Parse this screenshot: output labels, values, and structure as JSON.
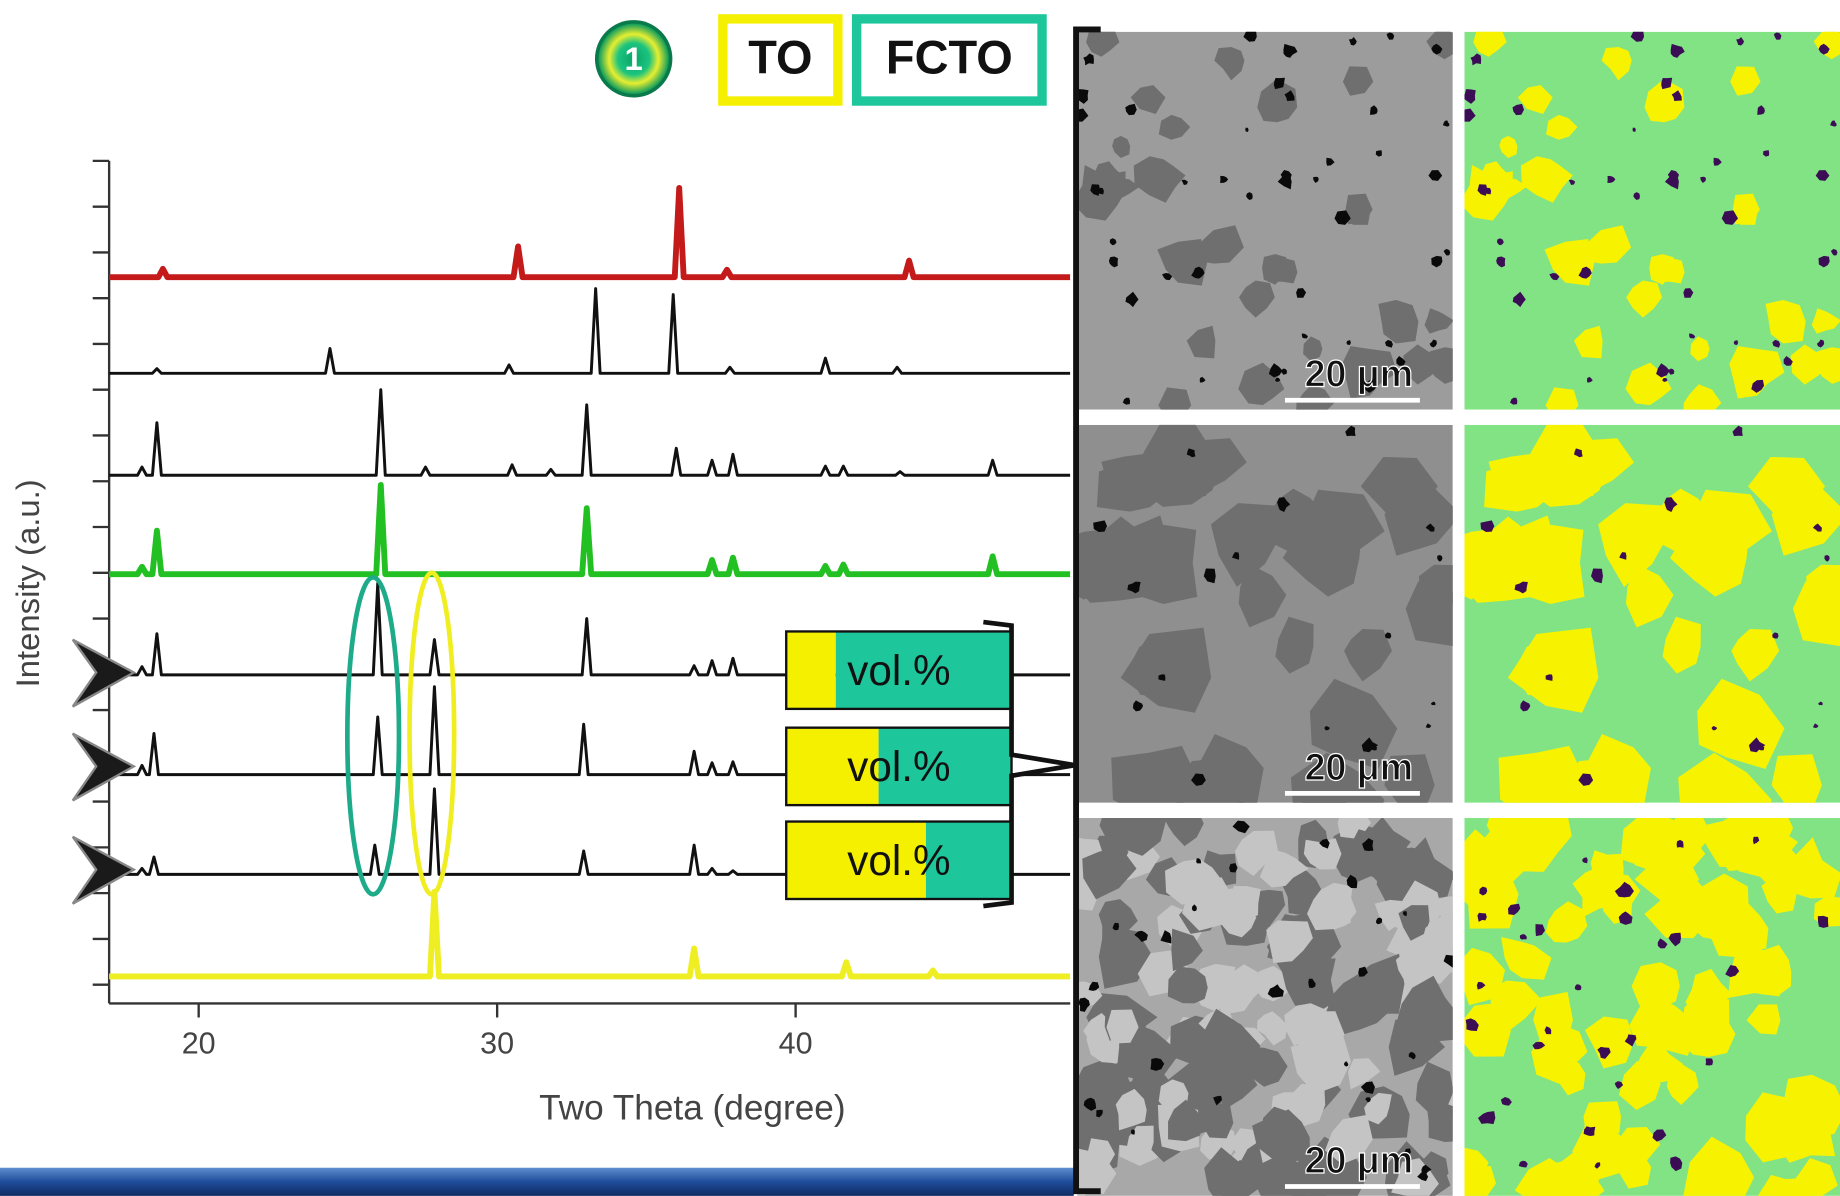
{
  "badge": "1",
  "legend": [
    {
      "label": "TO",
      "color": "#f5ef00"
    },
    {
      "label": "FCTO",
      "color": "#1dc79b"
    }
  ],
  "chart_data": {
    "type": "line",
    "x_label": "Two Theta (degree)",
    "y_label": "Intensity (a.u.)",
    "xlim": [
      17,
      49.2
    ],
    "xticks": [
      20,
      30,
      40
    ],
    "ylim": [
      -0.41,
      18
    ],
    "yticks": [
      0,
      1,
      2,
      3,
      4,
      5,
      6,
      7,
      8,
      9,
      10,
      11,
      12,
      13,
      14,
      15,
      16,
      17,
      18
    ],
    "series": [
      {
        "color": "#c41a1a",
        "line_width": 5,
        "x": [
          17,
          18.65,
          18.8,
          18.95,
          30.55,
          30.7,
          30.85,
          35.95,
          36.1,
          36.25,
          37.55,
          37.7,
          37.85,
          43.65,
          43.8,
          43.95,
          49.2
        ],
        "values": [
          15.46,
          15.46,
          15.64,
          15.46,
          15.46,
          16.13,
          15.46,
          15.46,
          17.41,
          15.46,
          15.46,
          15.62,
          15.46,
          15.46,
          15.82,
          15.46,
          15.46
        ]
      },
      {
        "color": "#111111",
        "line_width": 2.5,
        "x": [
          17,
          18.45,
          18.6,
          18.75,
          24.25,
          24.4,
          24.55,
          30.25,
          30.4,
          30.55,
          33.15,
          33.3,
          33.45,
          35.75,
          35.9,
          36.05,
          37.65,
          37.8,
          37.95,
          40.85,
          41,
          41.15,
          43.25,
          43.4,
          43.55,
          49.2
        ],
        "values": [
          13.36,
          13.36,
          13.46,
          13.36,
          13.36,
          13.9,
          13.36,
          13.36,
          13.54,
          13.36,
          13.36,
          15.21,
          13.36,
          13.36,
          15.08,
          13.36,
          13.36,
          13.49,
          13.36,
          13.36,
          13.69,
          13.36,
          13.36,
          13.49,
          13.36,
          13.36
        ]
      },
      {
        "color": "#111111",
        "line_width": 2.5,
        "x": [
          17,
          17.95,
          18.1,
          18.25,
          18.45,
          18.6,
          18.75,
          25.95,
          26.1,
          26.25,
          27.45,
          27.6,
          27.75,
          30.35,
          30.5,
          30.65,
          31.65,
          31.8,
          31.95,
          32.85,
          33,
          33.15,
          35.85,
          36,
          36.15,
          37.05,
          37.2,
          37.35,
          37.75,
          37.9,
          38.05,
          40.85,
          41,
          41.15,
          41.45,
          41.6,
          41.75,
          43.35,
          43.5,
          43.65,
          46.45,
          46.6,
          46.75,
          49.2
        ],
        "values": [
          11.13,
          11.13,
          11.31,
          11.13,
          11.13,
          12.28,
          11.13,
          11.13,
          13,
          11.13,
          11.13,
          11.31,
          11.13,
          11.13,
          11.36,
          11.13,
          11.13,
          11.26,
          11.13,
          11.13,
          12.67,
          11.13,
          11.13,
          11.72,
          11.13,
          11.13,
          11.46,
          11.13,
          11.13,
          11.59,
          11.13,
          11.13,
          11.33,
          11.13,
          11.13,
          11.33,
          11.13,
          11.13,
          11.21,
          11.13,
          11.13,
          11.46,
          11.13,
          11.13
        ]
      },
      {
        "color": "#22c022",
        "line_width": 5,
        "x": [
          17,
          17.95,
          18.1,
          18.25,
          18.45,
          18.6,
          18.75,
          25.95,
          26.1,
          26.25,
          32.85,
          33,
          33.15,
          37.05,
          37.2,
          37.35,
          37.75,
          37.9,
          38.05,
          40.85,
          41,
          41.15,
          41.45,
          41.6,
          41.75,
          46.45,
          46.6,
          46.75,
          49.2
        ],
        "values": [
          8.97,
          8.97,
          9.13,
          8.97,
          8.97,
          9.92,
          8.97,
          8.97,
          10.92,
          8.97,
          8.97,
          10.41,
          8.97,
          8.97,
          9.28,
          8.97,
          8.97,
          9.33,
          8.97,
          8.97,
          9.15,
          8.97,
          8.97,
          9.18,
          8.97,
          8.97,
          9.36,
          8.97,
          8.97
        ]
      },
      {
        "color": "#111111",
        "line_width": 2.5,
        "x": [
          17,
          17.95,
          18.1,
          18.25,
          18.45,
          18.6,
          18.75,
          25.85,
          26,
          26.15,
          27.75,
          27.9,
          28.05,
          32.85,
          33,
          33.15,
          36.45,
          36.6,
          36.75,
          37.05,
          37.2,
          37.35,
          37.75,
          37.9,
          38.05,
          49.2
        ],
        "values": [
          6.77,
          6.77,
          6.95,
          6.77,
          6.77,
          7.67,
          6.77,
          6.77,
          8.77,
          6.77,
          6.77,
          7.54,
          6.77,
          6.77,
          8,
          6.77,
          6.77,
          6.97,
          6.77,
          6.77,
          7.08,
          6.77,
          6.77,
          7.13,
          6.77,
          6.77
        ]
      },
      {
        "color": "#111111",
        "line_width": 2.5,
        "x": [
          17,
          17.95,
          18.1,
          18.25,
          18.35,
          18.5,
          18.65,
          25.85,
          26,
          26.15,
          27.75,
          27.9,
          28.05,
          32.75,
          32.9,
          33.05,
          36.45,
          36.6,
          36.75,
          37.05,
          37.2,
          37.35,
          37.75,
          37.9,
          38.05,
          49.2
        ],
        "values": [
          4.59,
          4.59,
          4.79,
          4.59,
          4.59,
          5.49,
          4.59,
          4.59,
          5.85,
          4.59,
          4.59,
          6.51,
          4.59,
          4.59,
          5.69,
          4.59,
          4.59,
          5.1,
          4.59,
          4.59,
          4.85,
          4.59,
          4.59,
          4.87,
          4.59,
          4.59
        ]
      },
      {
        "color": "#111111",
        "line_width": 2.5,
        "x": [
          17,
          17.95,
          18.1,
          18.25,
          18.35,
          18.5,
          18.65,
          25.75,
          25.9,
          26.05,
          27.75,
          27.9,
          28.05,
          32.75,
          32.9,
          33.05,
          36.45,
          36.6,
          36.75,
          37.05,
          37.2,
          37.35,
          37.75,
          37.9,
          38.05,
          49.2
        ],
        "values": [
          2.41,
          2.41,
          2.54,
          2.41,
          2.41,
          2.79,
          2.41,
          2.41,
          3.05,
          2.41,
          2.41,
          4.28,
          2.41,
          2.41,
          2.92,
          2.41,
          2.41,
          3.05,
          2.41,
          2.41,
          2.54,
          2.41,
          2.41,
          2.49,
          2.41,
          2.41
        ]
      },
      {
        "color": "#eeee22",
        "line_width": 5,
        "x": [
          17,
          27.75,
          27.9,
          28.05,
          36.45,
          36.6,
          36.75,
          41.55,
          41.7,
          41.85,
          44.45,
          44.6,
          44.75,
          49.2
        ],
        "values": [
          0.18,
          0.18,
          2.03,
          0.18,
          0.18,
          0.79,
          0.18,
          0.18,
          0.49,
          0.18,
          0.18,
          0.31,
          0.18,
          0.18
        ]
      }
    ]
  },
  "vol_bars": [
    {
      "label": "vol.%",
      "values": [
        22,
        78
      ]
    },
    {
      "label": "vol.%",
      "values": [
        41,
        59
      ]
    },
    {
      "label": "vol.%",
      "values": [
        62,
        38
      ]
    }
  ],
  "micrographs": [
    {
      "scale_label": "20 μm"
    },
    {
      "scale_label": "20 μm"
    },
    {
      "scale_label": "20 μm"
    }
  ]
}
